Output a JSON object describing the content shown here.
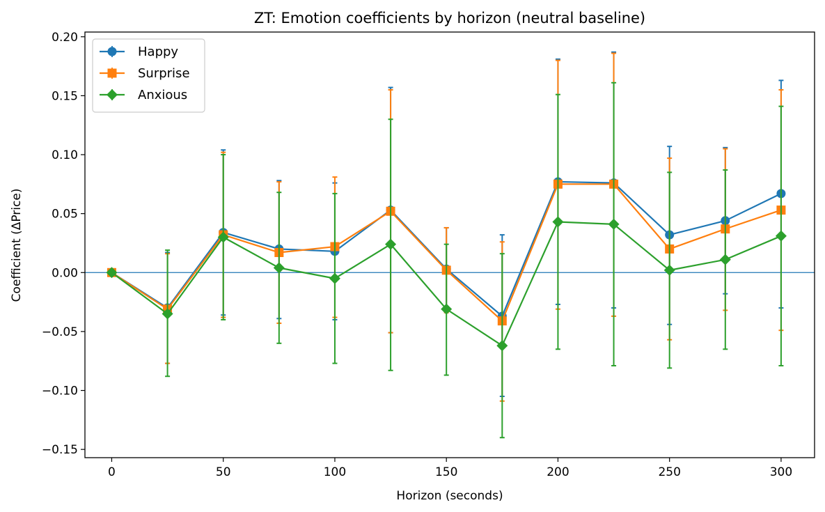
{
  "chart_data": {
    "type": "line",
    "title": "ZT: Emotion coefficients by horizon (neutral baseline)",
    "xlabel": "Horizon (seconds)",
    "ylabel": "Coefficient (ΔPrice)",
    "xlim": [
      -12,
      315
    ],
    "ylim": [
      -0.157,
      0.204
    ],
    "x_ticks": [
      0,
      50,
      100,
      150,
      200,
      250,
      300
    ],
    "x_tick_labels": [
      "0",
      "50",
      "100",
      "150",
      "200",
      "250",
      "300"
    ],
    "y_ticks": [
      -0.15,
      -0.1,
      -0.05,
      0.0,
      0.05,
      0.1,
      0.15,
      0.2
    ],
    "y_tick_labels": [
      "−0.15",
      "−0.10",
      "−0.05",
      "0.00",
      "0.05",
      "0.10",
      "0.15",
      "0.20"
    ],
    "grid": false,
    "reference_line": {
      "y": 0,
      "color": "#1f77b4"
    },
    "legend": {
      "placement": "upper-left"
    },
    "x": [
      0,
      25,
      50,
      75,
      100,
      125,
      150,
      175,
      200,
      225,
      250,
      275,
      300
    ],
    "series": [
      {
        "name": "Happy",
        "color": "#1f77b4",
        "marker": "circle",
        "values": [
          0.0,
          -0.03,
          0.034,
          0.02,
          0.018,
          0.053,
          0.003,
          -0.037,
          0.077,
          0.076,
          0.032,
          0.044,
          0.067
        ],
        "err_low": [
          0.0,
          -0.077,
          -0.036,
          -0.039,
          -0.04,
          -0.051,
          -0.032,
          -0.105,
          -0.027,
          -0.03,
          -0.044,
          -0.018,
          -0.03
        ],
        "err_high": [
          0.0,
          0.017,
          0.104,
          0.078,
          0.076,
          0.157,
          0.038,
          0.032,
          0.181,
          0.187,
          0.107,
          0.106,
          0.163
        ]
      },
      {
        "name": "Surprise",
        "color": "#ff7f0e",
        "marker": "square",
        "values": [
          0.0,
          -0.031,
          0.032,
          0.017,
          0.022,
          0.052,
          0.002,
          -0.041,
          0.075,
          0.075,
          0.02,
          0.037,
          0.053
        ],
        "err_low": [
          0.0,
          -0.077,
          -0.038,
          -0.043,
          -0.038,
          -0.051,
          -0.034,
          -0.109,
          -0.031,
          -0.037,
          -0.057,
          -0.032,
          -0.049
        ],
        "err_high": [
          0.0,
          0.016,
          0.102,
          0.077,
          0.081,
          0.155,
          0.038,
          0.026,
          0.18,
          0.186,
          0.097,
          0.105,
          0.155
        ]
      },
      {
        "name": "Anxious",
        "color": "#2ca02c",
        "marker": "diamond",
        "values": [
          0.0,
          -0.035,
          0.03,
          0.004,
          -0.005,
          0.024,
          -0.031,
          -0.062,
          0.043,
          0.041,
          0.002,
          0.011,
          0.031
        ],
        "err_low": [
          0.0,
          -0.088,
          -0.04,
          -0.06,
          -0.077,
          -0.083,
          -0.087,
          -0.14,
          -0.065,
          -0.079,
          -0.081,
          -0.065,
          -0.079
        ],
        "err_high": [
          0.0,
          0.019,
          0.1,
          0.068,
          0.067,
          0.13,
          0.024,
          0.016,
          0.151,
          0.161,
          0.085,
          0.087,
          0.141
        ]
      }
    ]
  }
}
